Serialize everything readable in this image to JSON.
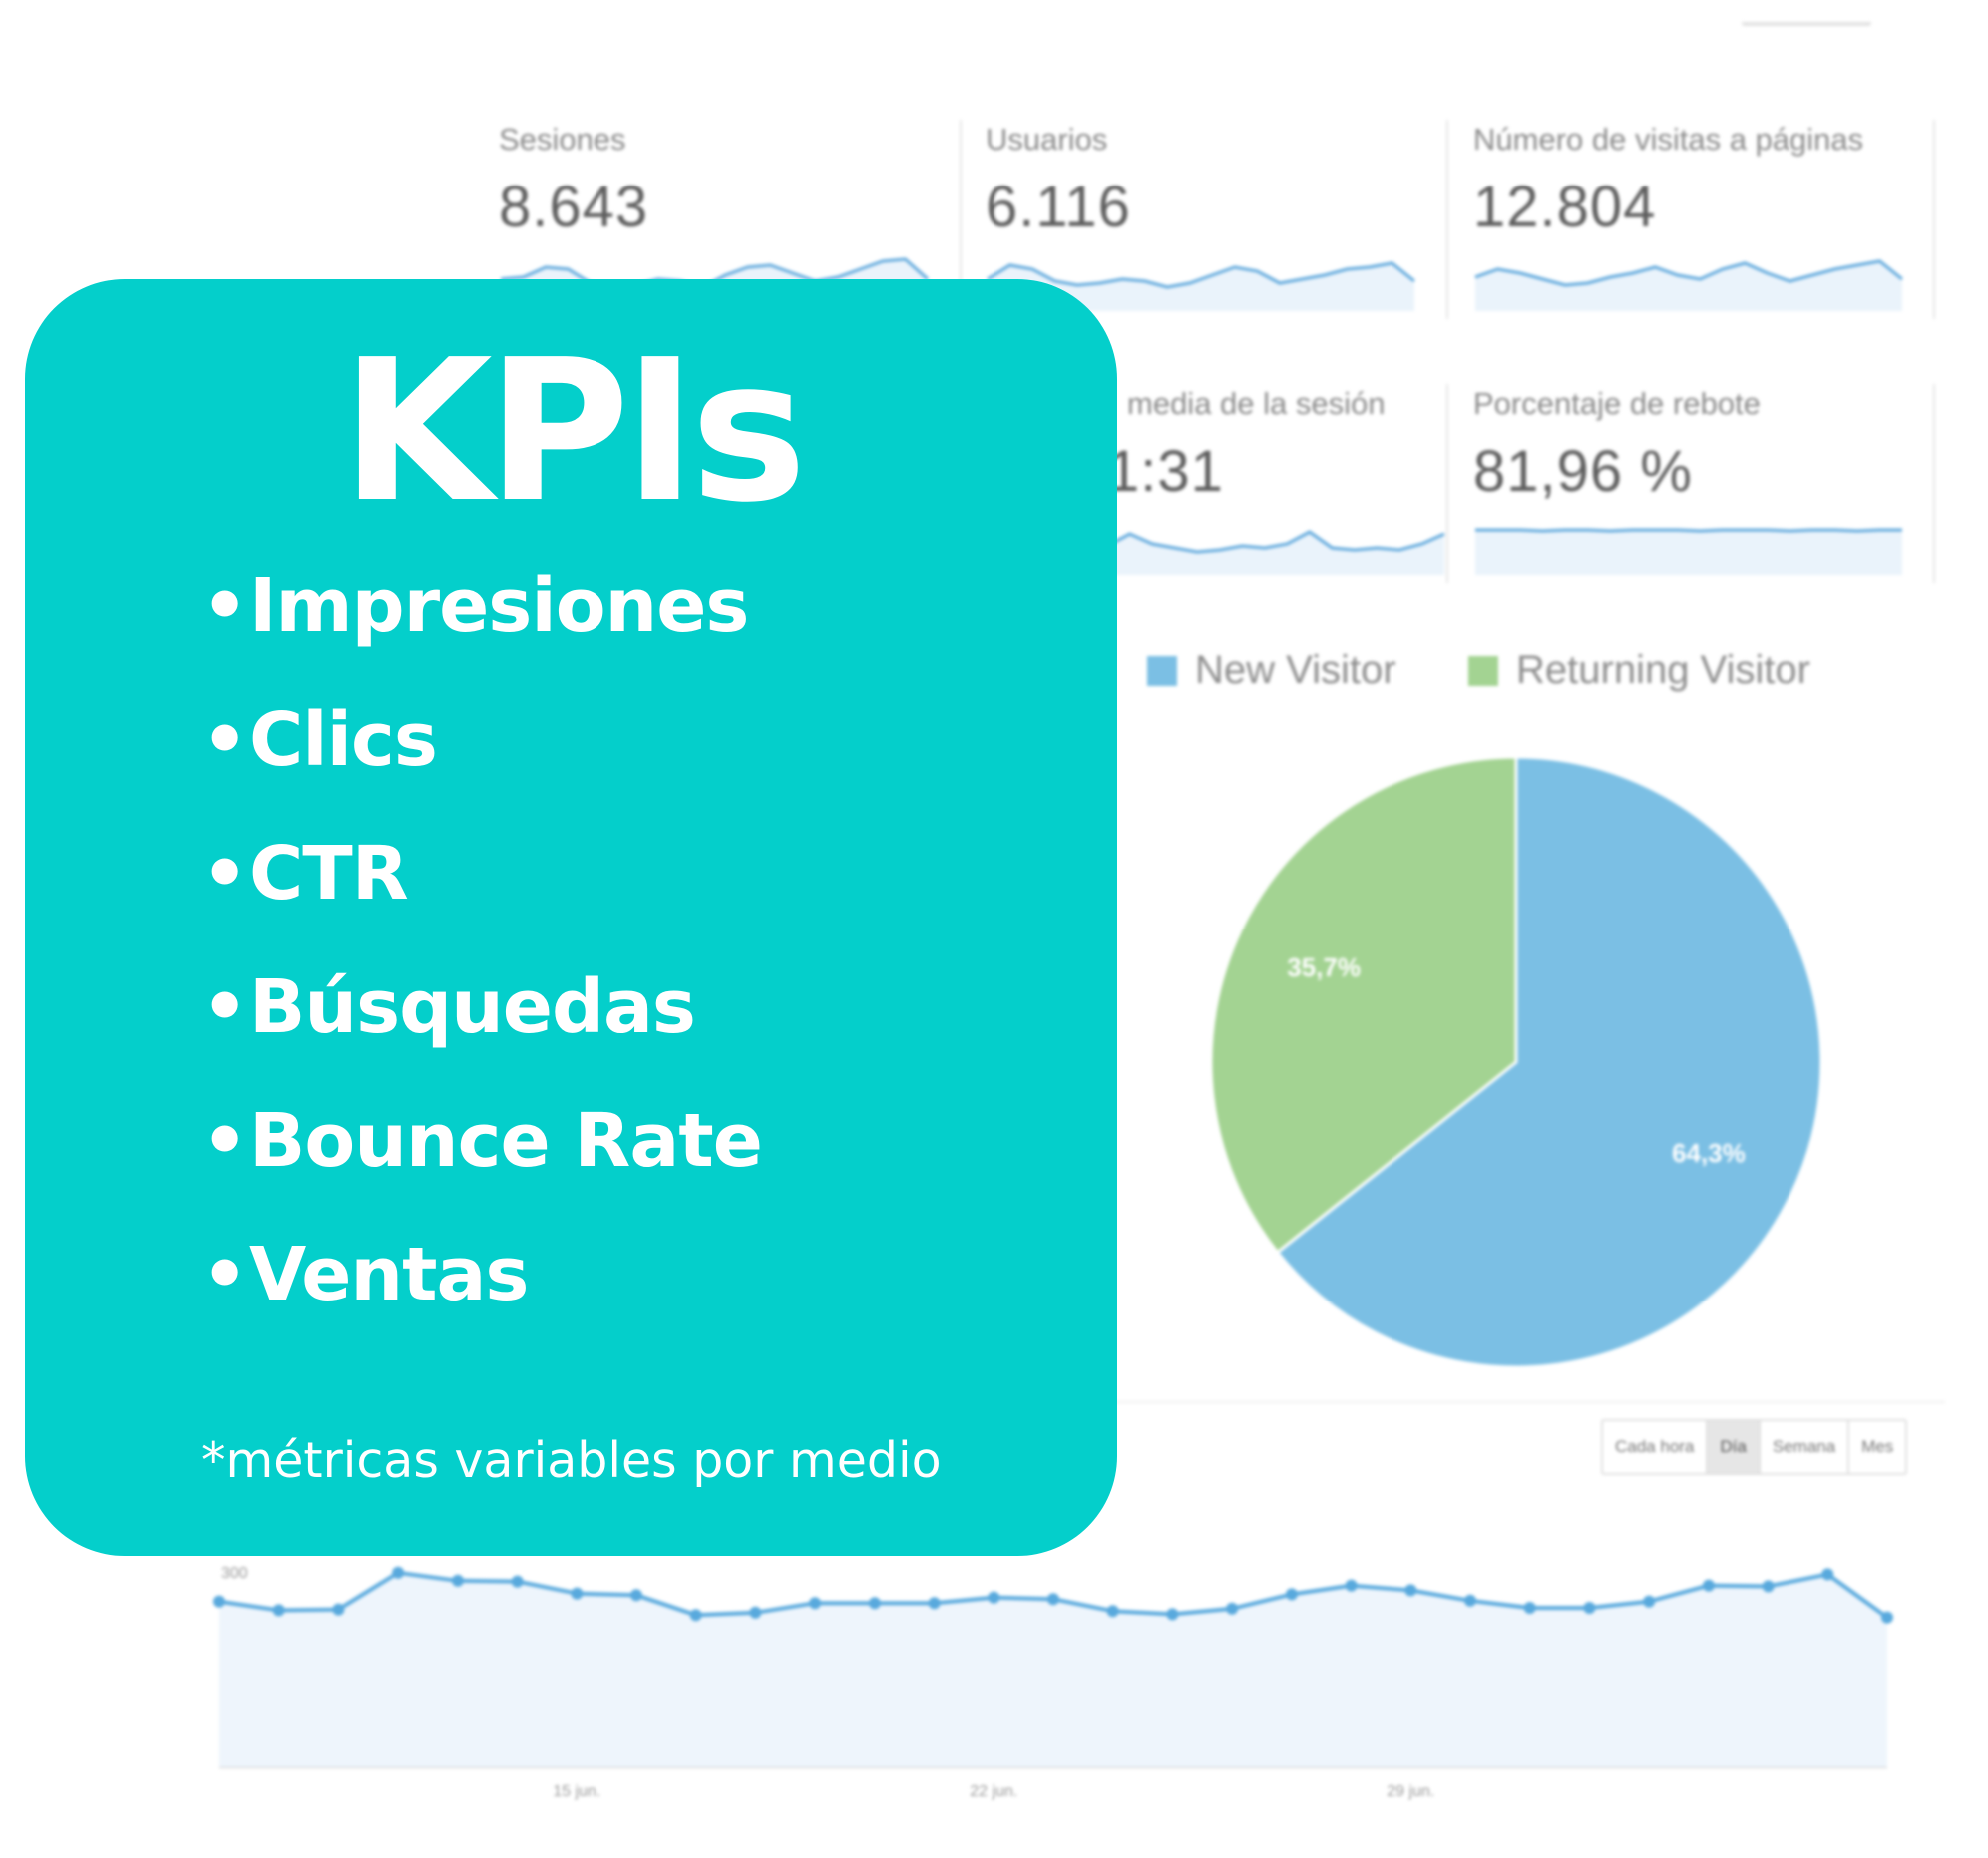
{
  "colors": {
    "kpi_background": "#04cfcb",
    "kpi_text": "#ffffff",
    "new_visitor": "#7bbfe4",
    "returning_visitor": "#a3d392",
    "sparkline": "#5fa8dc",
    "line_chart": "#58a9dd"
  },
  "metrics": [
    {
      "label": "Sesiones",
      "value": "8.643"
    },
    {
      "label": "Usuarios",
      "value": "6.116"
    },
    {
      "label": "Número de visitas a páginas",
      "value": "12.804"
    },
    {
      "label": "media de la sesión",
      "value": "1:31"
    },
    {
      "label": "Porcentaje de rebote",
      "value": "81,96 %"
    }
  ],
  "kpi": {
    "title": "KPIs",
    "items": [
      "Impresiones",
      "Clics",
      "CTR",
      "Búsquedas",
      "Bounce Rate",
      "Ventas"
    ],
    "footnote": "*métricas variables por medio"
  },
  "granularity": {
    "options": [
      "Cada hora",
      "Día",
      "Semana",
      "Mes"
    ],
    "selected": "Día"
  },
  "chart_data": [
    {
      "type": "pie",
      "categories": [
        "New Visitor",
        "Returning Visitor"
      ],
      "values": [
        64.3,
        35.7
      ],
      "data_labels": [
        "64,3%",
        "35,7%"
      ],
      "legend": "top"
    },
    {
      "type": "line",
      "ylim": [
        200,
        300
      ],
      "y_ticks": [
        "250",
        "300"
      ],
      "x_tick_labels": [
        "15 jun.",
        "22 jun.",
        "29 jun."
      ],
      "x_tick_index": [
        6,
        13,
        20
      ],
      "series": [
        {
          "values": [
            263,
            252,
            253,
            299,
            289,
            288,
            273,
            271,
            246,
            249,
            261,
            261,
            261,
            268,
            266,
            251,
            247,
            254,
            272,
            283,
            277,
            264,
            255,
            255,
            263,
            283,
            282,
            297,
            243
          ]
        }
      ],
      "grid": false
    }
  ]
}
